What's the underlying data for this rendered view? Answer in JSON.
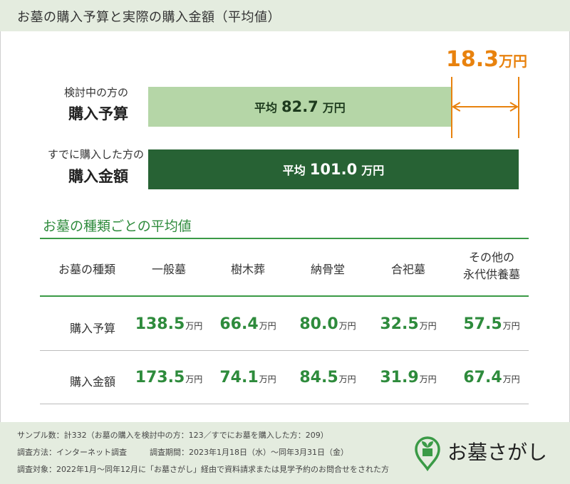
{
  "title": "お墓の購入予算と実際の購入金額（平均値）",
  "chart_data": [
    {
      "type": "bar",
      "orientation": "horizontal",
      "categories": [
        "検討中の方の 購入予算",
        "すでに購入した方の 購入金額"
      ],
      "values": [
        82.7,
        101.0
      ],
      "unit": "万円",
      "colors": [
        "#b5d6a7",
        "#276234"
      ],
      "difference": 18.3,
      "rows": [
        {
          "small": "検討中の方の",
          "big": "購入予算",
          "prefix": "平均",
          "value": "82.7",
          "unit": "万円"
        },
        {
          "small": "すでに購入した方の",
          "big": "購入金額",
          "prefix": "平均",
          "value": "101.0",
          "unit": "万円"
        }
      ],
      "difference_label": {
        "value": "18.3",
        "unit": "万円"
      },
      "accent_color": "#e8820e"
    },
    {
      "type": "table",
      "title": "お墓の種類ごとの平均値",
      "header_label": "お墓の種類",
      "columns": [
        {
          "line1": "一般墓",
          "line2": ""
        },
        {
          "line1": "樹木葬",
          "line2": ""
        },
        {
          "line1": "納骨堂",
          "line2": ""
        },
        {
          "line1": "合祀墓",
          "line2": ""
        },
        {
          "line1": "その他の",
          "line2": "永代供養墓"
        }
      ],
      "rows": [
        {
          "label": "購入予算",
          "values": [
            "138.5",
            "66.4",
            "80.0",
            "32.5",
            "57.5"
          ],
          "unit": "万円"
        },
        {
          "label": "購入金額",
          "values": [
            "173.5",
            "74.1",
            "84.5",
            "31.9",
            "67.4"
          ],
          "unit": "万円"
        }
      ],
      "value_color": "#2e8b3c"
    }
  ],
  "footer": {
    "sample": "サンプル数：計332（お墓の購入を検討中の方：123／すでにお墓を購入した方：209）",
    "method": "調査方法：インターネット調査",
    "period": "調査期間：2023年1月18日（水）〜同年3月31日（金）",
    "target": "調査対象：2022年1月〜同年12月に「お墓さがし」経由で資料請求または見学予約のお問合せをされた方"
  },
  "brand": {
    "name": "お墓さがし",
    "icon": "leaf-pin-logo-icon",
    "color": "#3a9a46"
  }
}
